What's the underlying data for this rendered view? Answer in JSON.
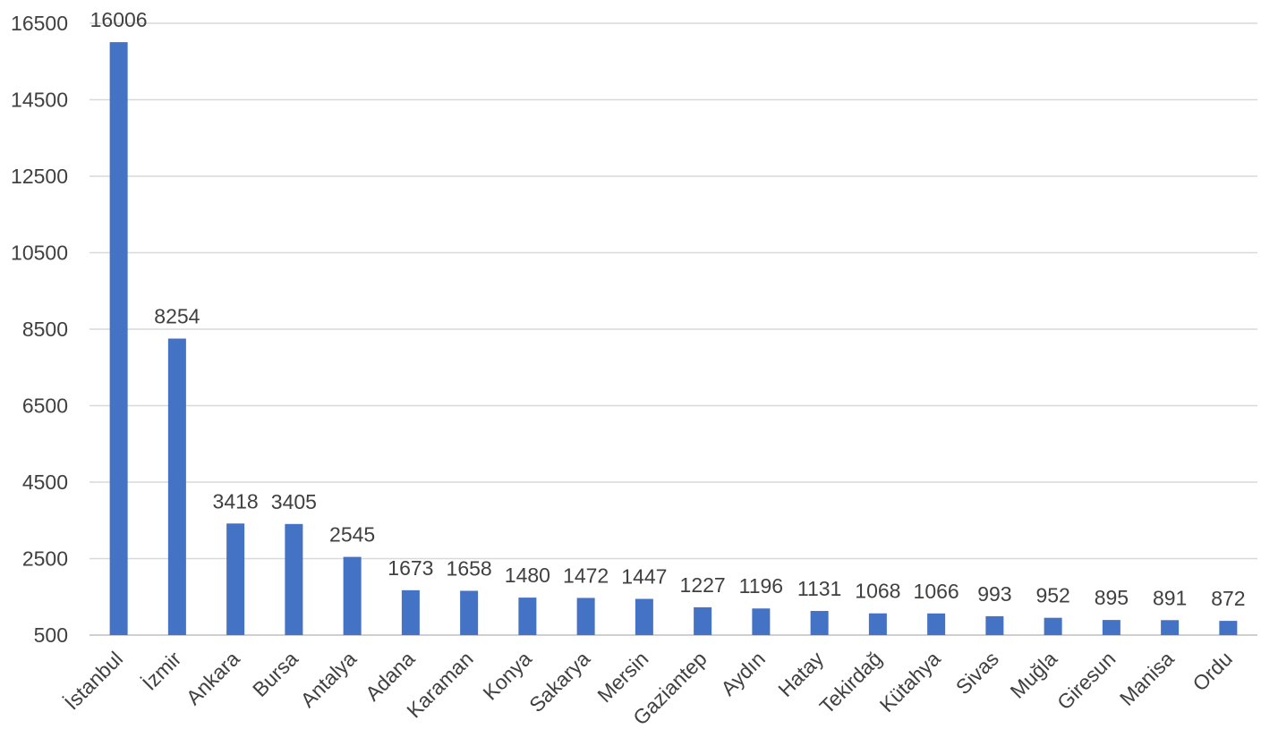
{
  "chart_data": {
    "type": "bar",
    "title": "",
    "xlabel": "",
    "ylabel": "",
    "ylim": [
      500,
      16500
    ],
    "yticks": [
      500,
      2500,
      4500,
      6500,
      8500,
      10500,
      12500,
      14500,
      16500
    ],
    "grid": true,
    "legend": "none",
    "bar_color": "#4472c4",
    "categories": [
      "İstanbul",
      "İzmir",
      "Ankara",
      "Bursa",
      "Antalya",
      "Adana",
      "Karaman",
      "Konya",
      "Sakarya",
      "Mersin",
      "Gaziantep",
      "Aydın",
      "Hatay",
      "Tekirdağ",
      "Kütahya",
      "Sivas",
      "Muğla",
      "Giresun",
      "Manisa",
      "Ordu"
    ],
    "values": [
      16006,
      8254,
      3418,
      3405,
      2545,
      1673,
      1658,
      1480,
      1472,
      1447,
      1227,
      1196,
      1131,
      1068,
      1066,
      993,
      952,
      895,
      891,
      872
    ]
  }
}
